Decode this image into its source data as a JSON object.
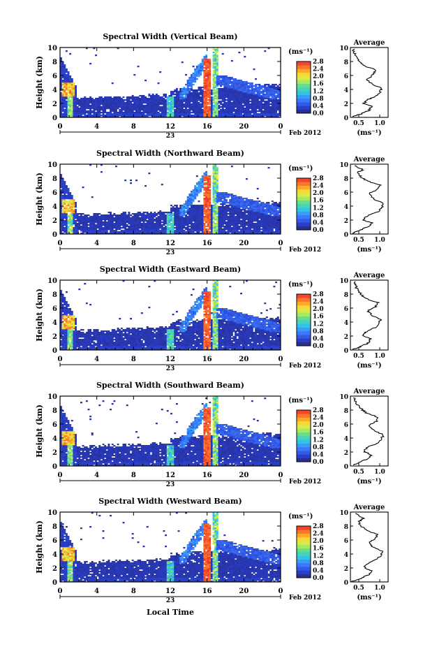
{
  "figure": {
    "xlabel": "Local Time",
    "date_label": "Feb 2012",
    "day_label": "23",
    "ylabel": "Height (km)",
    "unit_label": "(ms⁻¹)",
    "avg_title": "Average",
    "avg_xlabel": "(ms⁻¹)"
  },
  "chart_data": [
    {
      "type": "heatmap",
      "title": "Spectral Width (Vertical Beam)",
      "x_ticks": [
        "0",
        "4",
        "8",
        "12",
        "16",
        "20",
        "0"
      ],
      "y_ticks": [
        "0",
        "2",
        "4",
        "6",
        "8",
        "10"
      ],
      "colorbar_ticks": [
        "0.0",
        "0.4",
        "0.8",
        "1.2",
        "1.6",
        "2.0",
        "2.4",
        "2.8"
      ],
      "avg_x_ticks": [
        "0.5",
        "1.0"
      ],
      "avg_profile": [
        [
          0.35,
          0.1
        ],
        [
          0.55,
          0.5
        ],
        [
          0.75,
          1.0
        ],
        [
          0.8,
          1.6
        ],
        [
          0.62,
          2.0
        ],
        [
          0.7,
          2.5
        ],
        [
          0.9,
          3.0
        ],
        [
          1.0,
          3.6
        ],
        [
          1.05,
          4.2
        ],
        [
          0.8,
          4.8
        ],
        [
          0.7,
          5.4
        ],
        [
          0.85,
          6.2
        ],
        [
          0.9,
          6.8
        ],
        [
          0.62,
          7.4
        ],
        [
          0.52,
          8.0
        ],
        [
          0.42,
          8.8
        ],
        [
          0.38,
          9.4
        ],
        [
          0.38,
          9.8
        ]
      ]
    },
    {
      "type": "heatmap",
      "title": "Spectral Width (Northward Beam)",
      "x_ticks": [
        "0",
        "4",
        "8",
        "12",
        "16",
        "20",
        "0"
      ],
      "y_ticks": [
        "0",
        "2",
        "4",
        "6",
        "8",
        "10"
      ],
      "colorbar_ticks": [
        "0.0",
        "0.4",
        "0.8",
        "1.2",
        "1.6",
        "2.0",
        "2.4",
        "2.8"
      ],
      "avg_x_ticks": [
        "0.5",
        "1.0"
      ],
      "avg_profile": [
        [
          0.35,
          0.1
        ],
        [
          0.5,
          0.5
        ],
        [
          0.7,
          1.0
        ],
        [
          0.82,
          1.6
        ],
        [
          0.6,
          2.0
        ],
        [
          0.7,
          2.6
        ],
        [
          0.95,
          3.2
        ],
        [
          1.05,
          3.8
        ],
        [
          1.1,
          4.4
        ],
        [
          0.85,
          5.0
        ],
        [
          0.75,
          5.8
        ],
        [
          0.95,
          6.4
        ],
        [
          1.0,
          7.0
        ],
        [
          0.7,
          7.6
        ],
        [
          0.55,
          8.2
        ],
        [
          0.45,
          8.8
        ],
        [
          0.6,
          9.2
        ],
        [
          0.4,
          9.8
        ]
      ]
    },
    {
      "type": "heatmap",
      "title": "Spectral Width (Eastward Beam)",
      "x_ticks": [
        "0",
        "4",
        "8",
        "12",
        "16",
        "20",
        "0"
      ],
      "y_ticks": [
        "0",
        "2",
        "4",
        "6",
        "8",
        "10"
      ],
      "colorbar_ticks": [
        "0.0",
        "0.4",
        "0.8",
        "1.2",
        "1.6",
        "2.0",
        "2.4",
        "2.8"
      ],
      "avg_x_ticks": [
        "0.5",
        "1.0"
      ],
      "avg_profile": [
        [
          0.35,
          0.1
        ],
        [
          0.55,
          0.5
        ],
        [
          0.72,
          1.0
        ],
        [
          0.78,
          1.6
        ],
        [
          0.6,
          2.1
        ],
        [
          0.68,
          2.6
        ],
        [
          0.88,
          3.2
        ],
        [
          0.98,
          3.8
        ],
        [
          1.02,
          4.4
        ],
        [
          0.8,
          5.0
        ],
        [
          0.72,
          5.6
        ],
        [
          0.9,
          6.2
        ],
        [
          0.95,
          6.8
        ],
        [
          0.65,
          7.4
        ],
        [
          0.55,
          8.0
        ],
        [
          0.45,
          8.8
        ],
        [
          0.42,
          9.4
        ],
        [
          0.4,
          9.8
        ]
      ]
    },
    {
      "type": "heatmap",
      "title": "Spectral Width (Southward Beam)",
      "x_ticks": [
        "0",
        "4",
        "8",
        "12",
        "16",
        "20",
        "0"
      ],
      "y_ticks": [
        "0",
        "2",
        "4",
        "6",
        "8",
        "10"
      ],
      "colorbar_ticks": [
        "0.0",
        "0.4",
        "0.8",
        "1.2",
        "1.6",
        "2.0",
        "2.4",
        "2.8"
      ],
      "avg_x_ticks": [
        "0.5",
        "1.0"
      ],
      "avg_profile": [
        [
          0.35,
          0.1
        ],
        [
          0.52,
          0.5
        ],
        [
          0.7,
          1.0
        ],
        [
          0.8,
          1.6
        ],
        [
          0.62,
          2.1
        ],
        [
          0.72,
          2.7
        ],
        [
          0.95,
          3.3
        ],
        [
          1.05,
          3.9
        ],
        [
          1.08,
          4.5
        ],
        [
          0.85,
          5.1
        ],
        [
          0.75,
          5.8
        ],
        [
          0.92,
          6.4
        ],
        [
          0.95,
          7.0
        ],
        [
          0.68,
          7.6
        ],
        [
          0.55,
          8.2
        ],
        [
          0.45,
          8.8
        ],
        [
          0.4,
          9.4
        ],
        [
          0.38,
          9.8
        ]
      ]
    },
    {
      "type": "heatmap",
      "title": "Spectral Width (Westward Beam)",
      "x_ticks": [
        "0",
        "4",
        "8",
        "12",
        "16",
        "20",
        "0"
      ],
      "y_ticks": [
        "0",
        "2",
        "4",
        "6",
        "8",
        "10"
      ],
      "colorbar_ticks": [
        "0.0",
        "0.4",
        "0.8",
        "1.2",
        "1.6",
        "2.0",
        "2.4",
        "2.8"
      ],
      "avg_x_ticks": [
        "0.5",
        "1.0"
      ],
      "avg_profile": [
        [
          0.35,
          0.1
        ],
        [
          0.55,
          0.5
        ],
        [
          0.72,
          1.0
        ],
        [
          0.8,
          1.6
        ],
        [
          0.62,
          2.0
        ],
        [
          0.7,
          2.6
        ],
        [
          0.92,
          3.2
        ],
        [
          1.02,
          3.8
        ],
        [
          1.05,
          4.4
        ],
        [
          0.82,
          5.0
        ],
        [
          0.74,
          5.6
        ],
        [
          0.9,
          6.2
        ],
        [
          0.94,
          6.8
        ],
        [
          0.68,
          7.4
        ],
        [
          0.55,
          8.0
        ],
        [
          0.48,
          8.6
        ],
        [
          0.62,
          9.1
        ],
        [
          0.42,
          9.8
        ]
      ]
    }
  ]
}
